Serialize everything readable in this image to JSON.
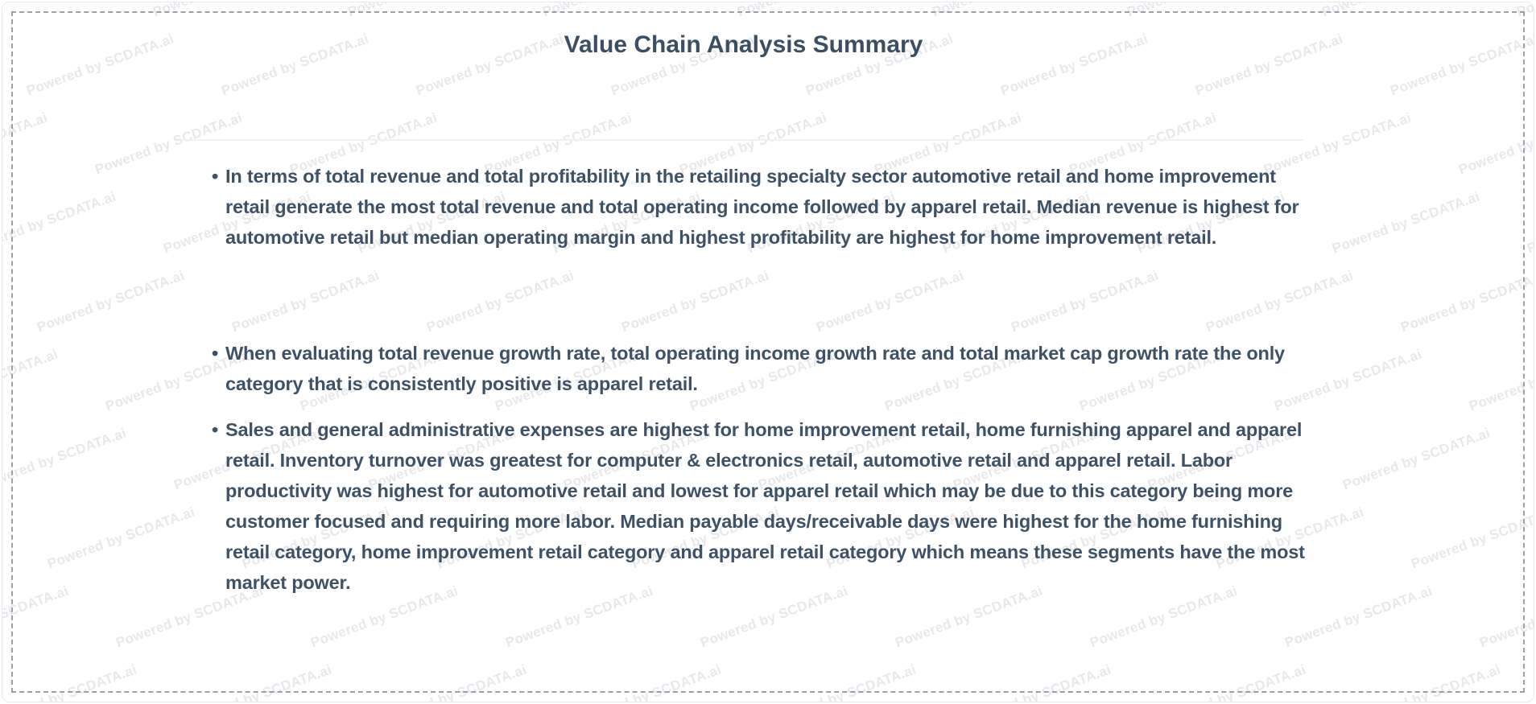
{
  "page": {
    "title": "Value Chain Analysis Summary",
    "bullets": [
      "In terms of total revenue and total profitability in the retailing specialty sector automotive retail and home improvement retail generate the most total revenue and total operating income followed by apparel retail. Median revenue is highest for automotive retail but median operating margin and highest profitability are highest for home improvement retail.",
      "When evaluating total revenue growth rate, total operating income growth rate and total market cap growth rate the only category that is consistently positive is apparel retail.",
      "Sales and general administrative expenses are highest for home improvement retail, home furnishing apparel and apparel retail. Inventory turnover was greatest for computer & electronics retail, automotive retail and apparel retail. Labor productivity was highest for automotive retail and lowest for apparel retail which may be due to this category being more customer focused and requiring more labor. Median payable days/receivable days were highest for the home furnishing retail category, home improvement retail category and apparel retail category which means these segments have the most market power."
    ],
    "bullet_marker": "•"
  },
  "watermark": {
    "text": "Powered by SCDATA.ai"
  },
  "colors": {
    "title": "#3a4f63",
    "body_text": "#3d5266",
    "watermark": "#e8e8eb",
    "dashed_border": "#99a0ab",
    "card_border": "#e9e9ec",
    "divider": "#f1f1f3"
  }
}
